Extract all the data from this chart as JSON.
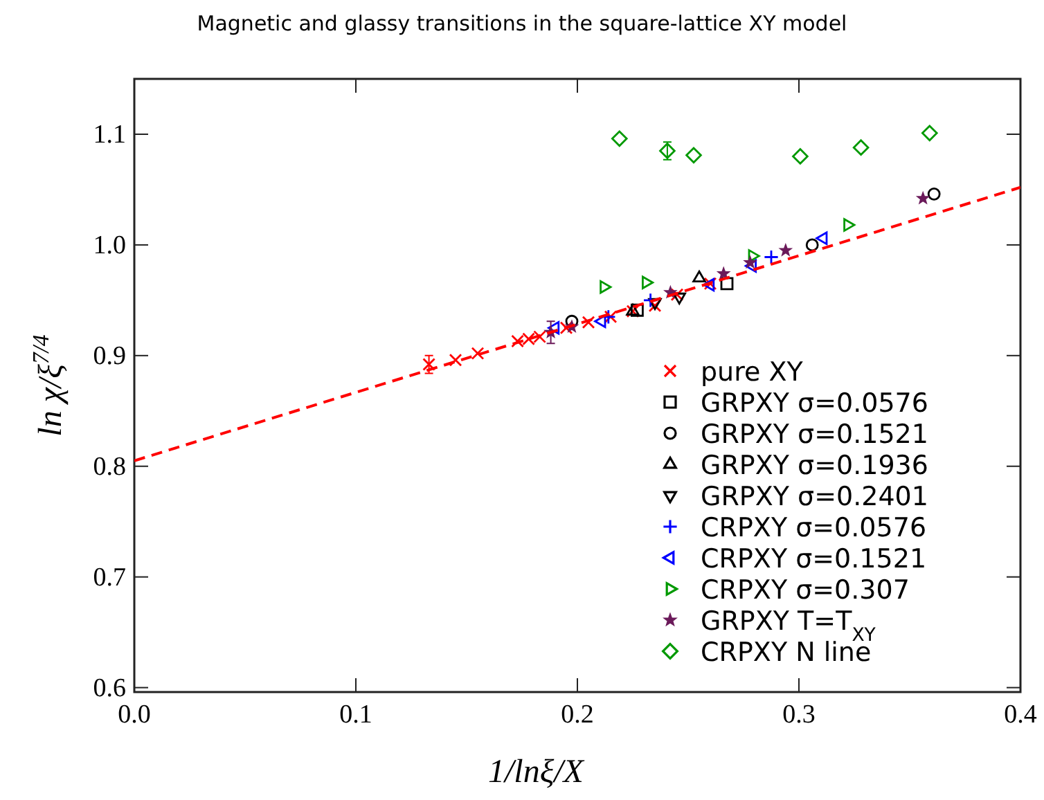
{
  "chart_data": {
    "type": "scatter",
    "title": "Magnetic and glassy transitions in the square-lattice XY model",
    "xlabel": "1/lnξ/X",
    "ylabel": "ln χ/ξ$^{7/4}$",
    "xlim": [
      0,
      0.4
    ],
    "ylim": [
      0.596,
      1.15
    ],
    "xticks": [
      {
        "value": 0,
        "label": "0.0"
      },
      0.1,
      0.2,
      0.3,
      0.4
    ],
    "yticks": [
      0.6,
      0.7,
      0.8,
      0.9,
      {
        "value": 1,
        "label": "1.0"
      },
      1.1
    ],
    "grid": false,
    "legend": "bottom right",
    "series": [
      {
        "name": "pure XY",
        "color": "#ff0000",
        "marker": "cross",
        "x": [
          0.133,
          0.145,
          0.155,
          0.173,
          0.178,
          0.183,
          0.195,
          0.205,
          0.215,
          0.225,
          0.235,
          0.245,
          0.26
        ],
        "values": [
          0.892,
          0.896,
          0.902,
          0.913,
          0.915,
          0.917,
          0.925,
          0.93,
          0.935,
          0.94,
          0.945,
          0.955,
          0.965
        ],
        "errors": [
          0.008,
          null,
          null,
          null,
          null,
          null,
          null,
          null,
          null,
          null,
          null,
          null,
          null
        ]
      },
      {
        "name": "GRPXY σ=0.0576",
        "color": "#000000",
        "marker": "square",
        "x": [
          0.227,
          0.2675
        ],
        "values": [
          0.941,
          0.965
        ]
      },
      {
        "name": "GRPXY σ=0.1521",
        "color": "#000000",
        "marker": "circle",
        "x": [
          0.1975,
          0.306,
          0.361
        ],
        "values": [
          0.931,
          1.0,
          1.046
        ]
      },
      {
        "name": "GRPXY σ=0.1936",
        "color": "#000000",
        "marker": "triangle",
        "x": [
          0.225,
          0.255
        ],
        "values": [
          0.94,
          0.97
        ]
      },
      {
        "name": "GRPXY σ=0.2401",
        "color": "#000000",
        "marker": "triangle-down",
        "x": [
          0.235,
          0.246
        ],
        "values": [
          0.948,
          0.953
        ]
      },
      {
        "name": "CRPXY σ=0.0576",
        "color": "#0000ff",
        "marker": "plus",
        "x": [
          0.214,
          0.233,
          0.2875
        ],
        "values": [
          0.935,
          0.95,
          0.989
        ]
      },
      {
        "name": "CRPXY σ=0.1521",
        "color": "#0000ff",
        "marker": "triangle-left",
        "x": [
          0.19,
          0.211,
          0.26,
          0.279,
          0.311
        ],
        "values": [
          0.925,
          0.931,
          0.964,
          0.981,
          1.006
        ]
      },
      {
        "name": "CRPXY σ=0.307",
        "color": "#009900",
        "marker": "triangle-right",
        "x": [
          0.212,
          0.231,
          0.279,
          0.322
        ],
        "values": [
          0.962,
          0.966,
          0.99,
          1.018
        ]
      },
      {
        "name": "GRPXY T=T$_{XY}$",
        "color": "#6b1a5a",
        "marker": "star",
        "x": [
          0.188,
          0.1975,
          0.242,
          0.266,
          0.278,
          0.294,
          0.356
        ],
        "values": [
          0.921,
          0.926,
          0.957,
          0.974,
          0.984,
          0.995,
          1.042
        ],
        "errors": [
          0.01,
          null,
          null,
          null,
          null,
          null,
          null
        ]
      },
      {
        "name": "CRPXY N line",
        "color": "#009900",
        "marker": "diamond",
        "x": [
          0.219,
          0.2406,
          0.2525,
          0.3006,
          0.328,
          0.359
        ],
        "values": [
          1.096,
          1.085,
          1.081,
          1.08,
          1.088,
          1.101
        ],
        "errors": [
          null,
          0.008,
          null,
          null,
          null,
          null
        ]
      },
      {
        "type": "line",
        "color": "#ff0000",
        "line_style": "dashed",
        "x": [
          0,
          0.4
        ],
        "values": [
          0.805,
          1.052
        ]
      }
    ]
  }
}
